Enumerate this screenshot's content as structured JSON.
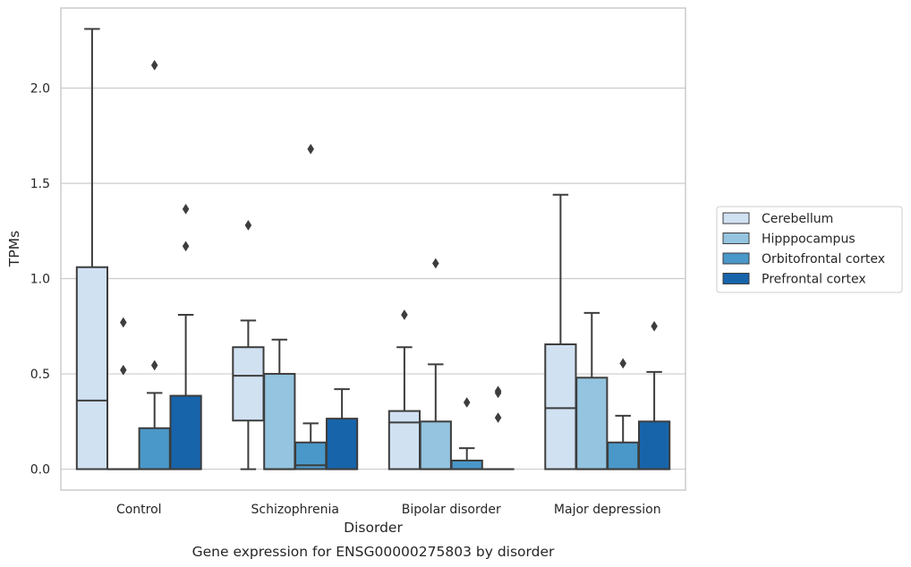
{
  "caption": "Gene expression for ENSG00000275803 by disorder",
  "chart_data": {
    "type": "box",
    "title": "",
    "xlabel": "Disorder",
    "ylabel": "TPMs",
    "ylim": [
      -0.11,
      2.42
    ],
    "yticks": [
      0.0,
      0.5,
      1.0,
      1.5,
      2.0
    ],
    "ytick_labels": [
      "0.0",
      "0.5",
      "1.0",
      "1.5",
      "2.0"
    ],
    "grid": "horizontal",
    "legend_position": "right",
    "categories": [
      "Control",
      "Schizophrenia",
      "Bipolar disorder",
      "Major depression"
    ],
    "series": [
      {
        "name": "Cerebellum",
        "color": "#d0e1f2",
        "boxes": [
          {
            "whislo": 0.0,
            "q1": 0.0,
            "med": 0.36,
            "q3": 1.06,
            "whishi": 2.31,
            "fliers": []
          },
          {
            "whislo": 0.0,
            "q1": 0.255,
            "med": 0.49,
            "q3": 0.64,
            "whishi": 0.78,
            "fliers": [
              1.28
            ]
          },
          {
            "whislo": 0.0,
            "q1": 0.0,
            "med": 0.245,
            "q3": 0.305,
            "whishi": 0.64,
            "fliers": [
              0.81
            ]
          },
          {
            "whislo": 0.0,
            "q1": 0.0,
            "med": 0.32,
            "q3": 0.655,
            "whishi": 1.44,
            "fliers": []
          }
        ]
      },
      {
        "name": "Hipppocampus",
        "color": "#94c4df",
        "boxes": [
          {
            "whislo": 0.0,
            "q1": 0.0,
            "med": 0.0,
            "q3": 0.0,
            "whishi": 0.0,
            "fliers": [
              0.77,
              0.52
            ]
          },
          {
            "whislo": 0.0,
            "q1": 0.0,
            "med": 0.0,
            "q3": 0.5,
            "whishi": 0.68,
            "fliers": []
          },
          {
            "whislo": 0.0,
            "q1": 0.0,
            "med": 0.0,
            "q3": 0.25,
            "whishi": 0.55,
            "fliers": [
              1.08
            ]
          },
          {
            "whislo": 0.0,
            "q1": 0.0,
            "med": 0.0,
            "q3": 0.48,
            "whishi": 0.82,
            "fliers": []
          }
        ]
      },
      {
        "name": "Orbitofrontal cortex",
        "color": "#4a98c9",
        "boxes": [
          {
            "whislo": 0.0,
            "q1": 0.0,
            "med": 0.0,
            "q3": 0.215,
            "whishi": 0.4,
            "fliers": [
              2.12,
              0.545
            ]
          },
          {
            "whislo": 0.0,
            "q1": 0.0,
            "med": 0.02,
            "q3": 0.14,
            "whishi": 0.24,
            "fliers": [
              1.68
            ]
          },
          {
            "whislo": 0.0,
            "q1": 0.0,
            "med": 0.0,
            "q3": 0.045,
            "whishi": 0.11,
            "fliers": [
              0.35
            ]
          },
          {
            "whislo": 0.0,
            "q1": 0.0,
            "med": 0.0,
            "q3": 0.14,
            "whishi": 0.28,
            "fliers": [
              0.555
            ]
          }
        ]
      },
      {
        "name": "Prefrontal cortex",
        "color": "#1764ab",
        "boxes": [
          {
            "whislo": 0.0,
            "q1": 0.0,
            "med": 0.0,
            "q3": 0.385,
            "whishi": 0.81,
            "fliers": [
              1.365,
              1.17
            ]
          },
          {
            "whislo": 0.0,
            "q1": 0.0,
            "med": 0.0,
            "q3": 0.265,
            "whishi": 0.42,
            "fliers": []
          },
          {
            "whislo": 0.0,
            "q1": 0.0,
            "med": 0.0,
            "q3": 0.0,
            "whishi": 0.0,
            "fliers": [
              0.41,
              0.4,
              0.27
            ]
          },
          {
            "whislo": 0.0,
            "q1": 0.0,
            "med": 0.0,
            "q3": 0.25,
            "whishi": 0.51,
            "fliers": [
              0.75
            ]
          }
        ]
      }
    ]
  }
}
